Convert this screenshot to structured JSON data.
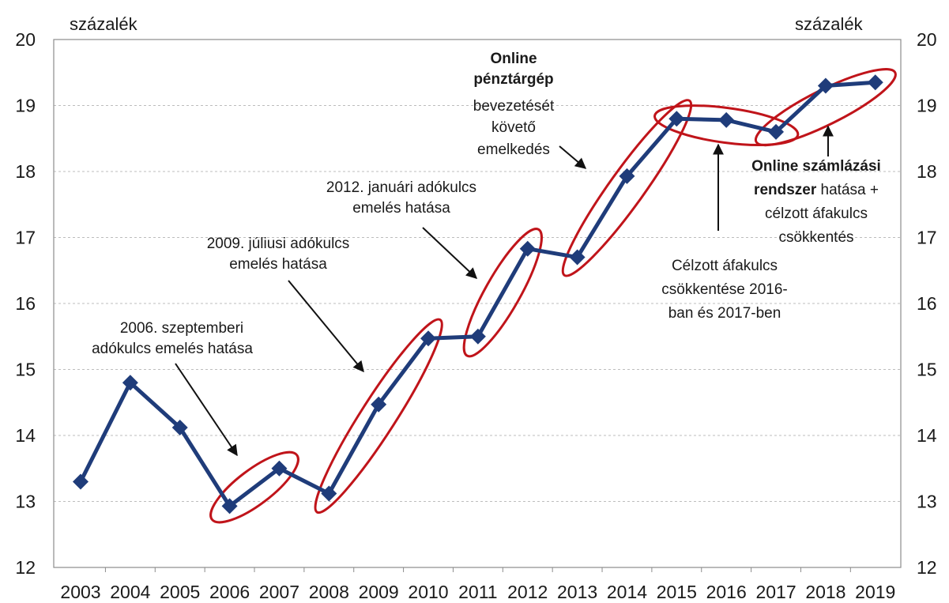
{
  "chart_data": {
    "type": "line",
    "x": [
      "2003",
      "2004",
      "2005",
      "2006",
      "2007",
      "2008",
      "2009",
      "2010",
      "2011",
      "2012",
      "2013",
      "2014",
      "2015",
      "2016",
      "2017",
      "2018",
      "2019"
    ],
    "series": [
      {
        "values": [
          13.3,
          14.8,
          14.12,
          12.93,
          13.5,
          13.12,
          14.47,
          15.47,
          15.5,
          16.83,
          16.7,
          17.93,
          18.8,
          18.78,
          18.6,
          19.3,
          19.35
        ]
      }
    ],
    "title": "",
    "ylabel_left": "százalék",
    "ylabel_right": "százalék",
    "ylim": [
      12,
      20
    ],
    "yticks": [
      12,
      13,
      14,
      15,
      16,
      17,
      18,
      19,
      20
    ],
    "grid": true,
    "legend": "none",
    "colors": {
      "line": "#1f3c7a",
      "highlight": "#c0141a",
      "arrow": "#111111"
    },
    "highlights": [
      {
        "from": "2006",
        "to": "2007"
      },
      {
        "from": "2008",
        "to": "2010"
      },
      {
        "from": "2011",
        "to": "2012"
      },
      {
        "from": "2013",
        "to": "2015"
      },
      {
        "from": "2015",
        "to": "2017"
      },
      {
        "from": "2017",
        "to": "2019"
      }
    ],
    "annotations": {
      "a2006": [
        "2006. szeptemberi",
        "adókulcs emelés hatása"
      ],
      "a2009": [
        "2009. júliusi adókulcs",
        "emelés hatása"
      ],
      "a2012": [
        "2012. januári adókulcs",
        "emelés hatása"
      ],
      "online_penztargep": {
        "bold_lines": [
          "Online",
          "pénztárgép"
        ],
        "lines": [
          "bevezetését",
          "követő",
          "emelkedés"
        ]
      },
      "celzott": [
        "Célzott áfakulcs",
        "csökkentése 2016-",
        "ban és 2017-ben"
      ],
      "online_szamlazasi": {
        "line1_bold": "Online számlázási",
        "line2_bold": "rendszer",
        "line2_rest": " hatása +",
        "line3": "célzott áfakulcs",
        "line4": "csökkentés"
      }
    }
  }
}
